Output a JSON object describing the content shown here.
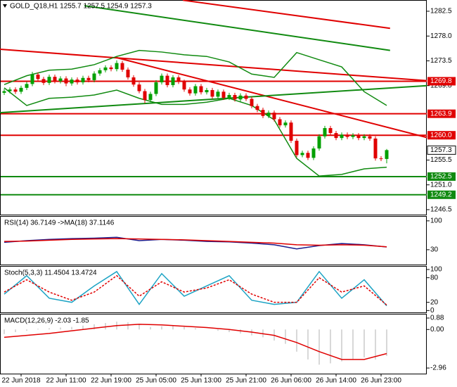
{
  "chart_data": [
    {
      "type": "candlestick",
      "title": "GOLD_Q18,H1  1255.7 1257.5 1254.9 1257.3",
      "categories": [
        null,
        null,
        null,
        "22 Jun 2018",
        null,
        null,
        null,
        null,
        null,
        null,
        null,
        "22 Jun 11:00",
        null,
        null,
        null,
        null,
        null,
        null,
        null,
        "22 Jun 19:00",
        null,
        null,
        null,
        null,
        null,
        null,
        null,
        "25 Jun 05:00",
        null,
        null,
        null,
        null,
        null,
        null,
        null,
        "25 Jun 13:00",
        null,
        null,
        null,
        null,
        null,
        null,
        null,
        "25 Jun 21:00",
        null,
        null,
        null,
        null,
        null,
        null,
        null,
        "26 Jun 06:00",
        null,
        null,
        null,
        null,
        null,
        null,
        null,
        "26 Jun 14:00",
        null,
        null,
        null,
        null,
        null,
        null,
        null,
        "26 Jun 23:00",
        null
      ],
      "open": [
        1267.7,
        1268.0,
        1268.3,
        1267.9,
        1268.6,
        1269.3,
        1271.0,
        1270.2,
        1269.5,
        1270.6,
        1269.8,
        1270.3,
        1269.4,
        1270.1,
        1269.6,
        1270.4,
        1270.0,
        1271.2,
        1271.8,
        1272.3,
        1272.0,
        1273.1,
        1271.9,
        1270.5,
        1269.2,
        1268.0,
        1266.4,
        1267.5,
        1269.6,
        1270.8,
        1269.1,
        1270.5,
        1269.7,
        1268.3,
        1267.6,
        1268.9,
        1267.8,
        1268.2,
        1267.0,
        1267.9,
        1266.8,
        1267.3,
        1266.5,
        1267.2,
        1266.6,
        1265.3,
        1264.6,
        1263.5,
        1264.1,
        1262.9,
        1261.8,
        1262.3,
        1259.0,
        1256.4,
        1256.8,
        1255.9,
        1257.6,
        1259.8,
        1261.3,
        1260.4,
        1259.5,
        1260.1,
        1259.7,
        1260.0,
        1259.5,
        1259.8,
        1259.4,
        1255.8,
        1255.7
      ],
      "high": [
        1268.4,
        1268.7,
        1268.7,
        1269.0,
        1269.7,
        1271.5,
        1271.4,
        1270.6,
        1271.0,
        1271.0,
        1270.7,
        1270.7,
        1270.5,
        1270.5,
        1270.8,
        1270.8,
        1271.6,
        1272.2,
        1272.7,
        1272.7,
        1273.6,
        1273.5,
        1272.3,
        1270.9,
        1269.6,
        1268.4,
        1267.9,
        1270.0,
        1271.2,
        1271.2,
        1270.9,
        1270.9,
        1270.1,
        1268.7,
        1269.3,
        1269.3,
        1268.6,
        1268.6,
        1268.3,
        1268.3,
        1267.7,
        1267.7,
        1267.6,
        1267.6,
        1267.0,
        1265.7,
        1265.0,
        1264.5,
        1264.5,
        1263.3,
        1262.7,
        1262.7,
        1259.4,
        1257.2,
        1257.2,
        1258.0,
        1260.2,
        1261.7,
        1261.7,
        1260.8,
        1260.5,
        1260.5,
        1260.4,
        1260.4,
        1260.2,
        1260.2,
        1259.8,
        1256.2,
        1257.5
      ],
      "low": [
        1267.3,
        1267.6,
        1267.5,
        1267.5,
        1268.2,
        1268.9,
        1269.8,
        1269.1,
        1269.1,
        1269.4,
        1269.4,
        1268.9,
        1269.0,
        1269.2,
        1269.2,
        1269.6,
        1269.6,
        1270.8,
        1271.4,
        1271.6,
        1271.6,
        1271.5,
        1270.1,
        1268.8,
        1267.6,
        1265.8,
        1266.0,
        1267.1,
        1269.2,
        1268.7,
        1268.7,
        1269.3,
        1267.9,
        1267.2,
        1267.2,
        1267.4,
        1267.4,
        1266.6,
        1266.6,
        1266.4,
        1266.4,
        1266.1,
        1266.1,
        1266.2,
        1264.9,
        1264.2,
        1263.1,
        1263.1,
        1262.5,
        1261.4,
        1261.4,
        1258.6,
        1256.0,
        1256.0,
        1255.5,
        1255.5,
        1257.2,
        1259.4,
        1260.0,
        1259.1,
        1259.1,
        1259.3,
        1259.3,
        1259.1,
        1259.1,
        1259.0,
        1255.4,
        1255.3,
        1254.9
      ],
      "close": [
        1268.0,
        1268.3,
        1267.9,
        1268.6,
        1269.3,
        1271.0,
        1270.2,
        1269.5,
        1270.6,
        1269.8,
        1270.3,
        1269.4,
        1270.1,
        1269.6,
        1270.4,
        1270.0,
        1271.2,
        1271.8,
        1272.3,
        1272.0,
        1273.1,
        1271.9,
        1270.5,
        1269.2,
        1268.0,
        1266.4,
        1267.5,
        1269.6,
        1270.8,
        1269.1,
        1270.5,
        1269.7,
        1268.3,
        1267.6,
        1268.9,
        1267.8,
        1268.2,
        1267.0,
        1267.9,
        1266.8,
        1267.3,
        1266.5,
        1267.2,
        1266.6,
        1265.3,
        1264.6,
        1263.5,
        1264.1,
        1262.9,
        1261.8,
        1262.3,
        1259.0,
        1256.4,
        1256.8,
        1255.9,
        1257.6,
        1259.8,
        1261.3,
        1260.4,
        1259.5,
        1260.1,
        1259.7,
        1260.0,
        1259.5,
        1259.8,
        1259.4,
        1255.8,
        1255.7,
        1257.3
      ],
      "up_color": "#00a000",
      "down_color": "#e00000",
      "ylim": [
        1245.6,
        1284.54
      ],
      "yticks": [
        1282.5,
        {
          "value": 1278,
          "label": "1278.0"
        },
        1273.5,
        {
          "value": 1269,
          "label": "1269.0"
        },
        1255.5,
        {
          "value": 1251,
          "label": "1251.0"
        },
        1246.5
      ],
      "series": [
        {
          "type": "line",
          "color": "#108a10",
          "x": [
            0,
            4,
            8,
            12,
            16,
            20,
            24,
            28,
            32,
            36,
            40,
            44,
            48,
            52,
            56,
            60,
            64,
            68
          ],
          "values": [
            1269.2,
            1270.8,
            1271.8,
            1272.0,
            1272.8,
            1274.3,
            1275.4,
            1275.1,
            1274.6,
            1274.3,
            1273.3,
            1271.1,
            1270.5,
            1275.0,
            1273.7,
            1272.4,
            1267.9,
            1265.4
          ]
        },
        {
          "type": "line",
          "color": "#108a10",
          "x": [
            0,
            4,
            8,
            12,
            16,
            20,
            24,
            28,
            32,
            36,
            40,
            44,
            48,
            52,
            56,
            60,
            64,
            68
          ],
          "values": [
            1268.6,
            1265.4,
            1266.7,
            1266.9,
            1267.3,
            1268.2,
            1266.7,
            1265.6,
            1265.6,
            1266.0,
            1266.7,
            1265.4,
            1262.8,
            1255.8,
            1252.6,
            1252.9,
            1253.9,
            1254.2
          ]
        }
      ],
      "trendlines": [
        {
          "color": "#e00000",
          "x": [
            31.75,
            68.6
          ],
          "values": [
            1284.5,
            1279.4
          ]
        },
        {
          "color": "#e00000",
          "x": [
            -0.75,
            75.125
          ],
          "values": [
            1275.6,
            1269.9
          ]
        },
        {
          "color": "#e00000",
          "x": [
            19.9,
            75.125
          ],
          "values": [
            1274.1,
            1259.6
          ]
        },
        {
          "color": "#108a10",
          "x": [
            14.25,
            68.6
          ],
          "values": [
            1283.5,
            1275.4
          ]
        },
        {
          "color": "#108a10",
          "x": [
            -0.75,
            75.125
          ],
          "values": [
            1264.1,
            1269.0
          ]
        }
      ],
      "levels": [
        {
          "value": 1269.8,
          "color": "#e00000"
        },
        {
          "value": 1263.9,
          "color": "#e00000"
        },
        {
          "value": 1260,
          "label": "1260.0",
          "color": "#e00000"
        },
        {
          "value": 1252.5,
          "color": "#108a10"
        },
        {
          "value": 1249.2,
          "color": "#108a10"
        }
      ]
    },
    {
      "type": "line",
      "title": "RSI(14) 36.7149 ->MA(18) 37.1146",
      "ylim": [
        -6,
        110
      ],
      "yticks": [
        100,
        30
      ],
      "series": [
        {
          "color": "#1a1a8c",
          "x": [
            0,
            4,
            8,
            12,
            16,
            20,
            24,
            28,
            32,
            36,
            40,
            44,
            48,
            52,
            56,
            60,
            64,
            68
          ],
          "values": [
            48,
            52,
            55,
            57,
            58,
            60,
            52,
            55,
            53,
            50,
            49,
            46,
            42,
            32,
            40,
            45,
            42,
            36.7
          ]
        },
        {
          "color": "#e00000",
          "x": [
            0,
            4,
            8,
            12,
            16,
            20,
            24,
            28,
            32,
            36,
            40,
            44,
            48,
            52,
            56,
            60,
            64,
            68
          ],
          "values": [
            50,
            51,
            53,
            55,
            56,
            57,
            56,
            55,
            54,
            52,
            50,
            48,
            46,
            42,
            41,
            42,
            41,
            37.1
          ]
        }
      ]
    },
    {
      "type": "line",
      "title": "Stoch(5,3,3) 11.4504 13.4724",
      "ylim": [
        -4.6,
        106.9
      ],
      "yticks": [
        100,
        80,
        20,
        0
      ],
      "series": [
        {
          "color": "#1ca3c4",
          "x": [
            0,
            4,
            8,
            12,
            16,
            20,
            24,
            28,
            32,
            36,
            40,
            44,
            48,
            52,
            56,
            60,
            64,
            68
          ],
          "values": [
            40,
            85,
            30,
            20,
            60,
            95,
            15,
            90,
            35,
            60,
            85,
            25,
            15,
            20,
            95,
            30,
            75,
            11.45
          ]
        },
        {
          "color": "#e00000",
          "dash": true,
          "x": [
            0,
            4,
            8,
            12,
            16,
            20,
            24,
            28,
            32,
            36,
            40,
            44,
            48,
            52,
            56,
            60,
            64,
            68
          ],
          "values": [
            45,
            75,
            45,
            25,
            45,
            85,
            35,
            70,
            45,
            55,
            75,
            40,
            20,
            20,
            80,
            45,
            60,
            13.47
          ]
        }
      ]
    },
    {
      "type": "bar",
      "title": "MACD(12,26,9) -2.03 -1.85",
      "ylim": [
        -3.39,
        1.15
      ],
      "yticks": [
        0.88,
        {
          "value": 0,
          "label": "0.00"
        },
        -2.96
      ],
      "series": [
        {
          "color": "#b0b0b0",
          "x": [
            0,
            2,
            4,
            6,
            8,
            10,
            12,
            14,
            16,
            18,
            20,
            22,
            24,
            26,
            28,
            30,
            32,
            34,
            36,
            38,
            40,
            42,
            44,
            46,
            48,
            50,
            52,
            54,
            56,
            58,
            60,
            62,
            64,
            66,
            68
          ],
          "values": [
            -0.35,
            -0.2,
            -0.1,
            0.05,
            0.1,
            0.15,
            0.2,
            0.3,
            0.4,
            0.5,
            0.6,
            0.55,
            0.4,
            0.2,
            0.25,
            0.3,
            0.2,
            0.1,
            0.0,
            -0.1,
            -0.2,
            -0.3,
            -0.45,
            -0.6,
            -0.85,
            -1.1,
            -1.7,
            -2.3,
            -2.7,
            -2.6,
            -2.45,
            -2.3,
            -2.15,
            -2.3,
            -2.03
          ]
        },
        {
          "type": "line",
          "color": "#e00000",
          "x": [
            0,
            4,
            8,
            12,
            16,
            20,
            24,
            28,
            32,
            36,
            40,
            44,
            48,
            52,
            56,
            60,
            64,
            68
          ],
          "values": [
            -0.6,
            -0.45,
            -0.3,
            -0.1,
            0.1,
            0.3,
            0.4,
            0.35,
            0.25,
            0.15,
            0.0,
            -0.2,
            -0.45,
            -1.0,
            -1.7,
            -2.3,
            -2.3,
            -1.85
          ]
        }
      ]
    }
  ]
}
